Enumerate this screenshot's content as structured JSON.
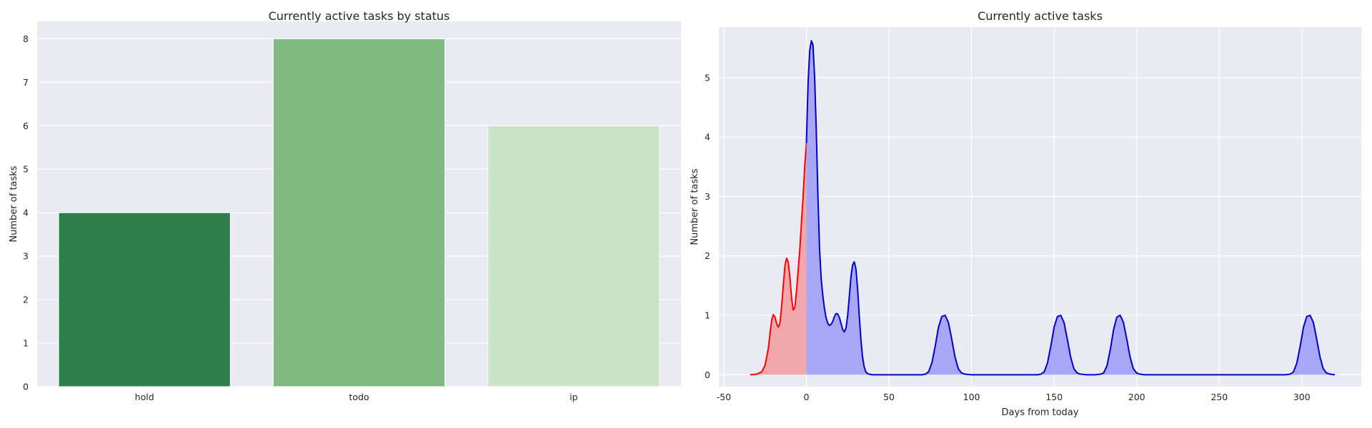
{
  "chart_data": [
    {
      "type": "bar",
      "title": "Currently active tasks by status",
      "xlabel": "",
      "ylabel": "Number of tasks",
      "categories": [
        "hold",
        "todo",
        "ip"
      ],
      "values": [
        4,
        8,
        6
      ],
      "colors": [
        "#2e7d4b",
        "#80ba80",
        "#cbe4c8"
      ],
      "ylim": [
        0,
        8.4
      ],
      "yticks": [
        0,
        1,
        2,
        3,
        4,
        5,
        6,
        7,
        8
      ],
      "grid": true,
      "legend": "none"
    },
    {
      "type": "area",
      "title": "Currently active tasks",
      "xlabel": "Days from today",
      "ylabel": "Number of tasks",
      "xlim": [
        -53,
        336
      ],
      "ylim": [
        -0.2,
        5.85
      ],
      "xticks": [
        -50,
        0,
        50,
        100,
        150,
        200,
        250,
        300
      ],
      "yticks": [
        0,
        1,
        2,
        3,
        4,
        5
      ],
      "grid": true,
      "legend": "none",
      "series": [
        {
          "color": "#ff0000",
          "fill": "#f0a3a6",
          "x": [
            -34,
            -30,
            -27,
            -25,
            -23,
            -22,
            -21,
            -20,
            -19,
            -18,
            -17,
            -16,
            -15,
            -14,
            -13,
            -12,
            -11,
            -10,
            -9,
            -8,
            -7,
            -6,
            -5,
            -4,
            -3,
            -2,
            -1,
            0
          ],
          "y": [
            0,
            0.01,
            0.05,
            0.16,
            0.45,
            0.7,
            0.92,
            1.01,
            0.97,
            0.86,
            0.8,
            0.87,
            1.15,
            1.5,
            1.83,
            1.96,
            1.9,
            1.65,
            1.3,
            1.09,
            1.13,
            1.4,
            1.75,
            2.1,
            2.55,
            3.0,
            3.5,
            3.9
          ]
        },
        {
          "color": "#0000cc",
          "fill": "#a3a3f5",
          "x": [
            0,
            1,
            2,
            3,
            4,
            5,
            6,
            7,
            8,
            9,
            10,
            11,
            12,
            13,
            14,
            15,
            16,
            17,
            18,
            19,
            20,
            21,
            22,
            23,
            24,
            25,
            26,
            27,
            28,
            29,
            30,
            31,
            32,
            33,
            34,
            35,
            36,
            37,
            38,
            40,
            42,
            45,
            50,
            60,
            70,
            72,
            74,
            76,
            78,
            80,
            82,
            84,
            86,
            88,
            90,
            92,
            94,
            96,
            100,
            120,
            140,
            142,
            144,
            146,
            148,
            150,
            152,
            154,
            156,
            158,
            160,
            162,
            164,
            166,
            170,
            175,
            178,
            180,
            182,
            184,
            186,
            188,
            190,
            192,
            194,
            196,
            198,
            200,
            202,
            205,
            220,
            260,
            290,
            293,
            295,
            297,
            299,
            301,
            303,
            305,
            307,
            309,
            311,
            313,
            315,
            317,
            320
          ],
          "y": [
            3.9,
            4.9,
            5.45,
            5.62,
            5.55,
            5.0,
            4.1,
            3.0,
            2.1,
            1.6,
            1.32,
            1.1,
            0.95,
            0.86,
            0.83,
            0.85,
            0.9,
            0.98,
            1.03,
            1.02,
            0.96,
            0.86,
            0.76,
            0.72,
            0.79,
            1.0,
            1.32,
            1.65,
            1.85,
            1.9,
            1.78,
            1.45,
            1.0,
            0.6,
            0.3,
            0.13,
            0.05,
            0.02,
            0.01,
            0,
            0,
            0,
            0,
            0,
            0,
            0.01,
            0.05,
            0.2,
            0.48,
            0.8,
            0.98,
            1.0,
            0.88,
            0.6,
            0.3,
            0.1,
            0.03,
            0.01,
            0,
            0,
            0,
            0.01,
            0.05,
            0.2,
            0.48,
            0.8,
            0.98,
            1.0,
            0.88,
            0.6,
            0.3,
            0.1,
            0.03,
            0.01,
            0,
            0,
            0.01,
            0.03,
            0.15,
            0.42,
            0.76,
            0.97,
            1.0,
            0.88,
            0.6,
            0.3,
            0.1,
            0.03,
            0.01,
            0,
            0,
            0,
            0,
            0.01,
            0.05,
            0.2,
            0.48,
            0.8,
            0.98,
            1.0,
            0.88,
            0.6,
            0.3,
            0.1,
            0.03,
            0.01,
            0
          ]
        }
      ]
    }
  ]
}
